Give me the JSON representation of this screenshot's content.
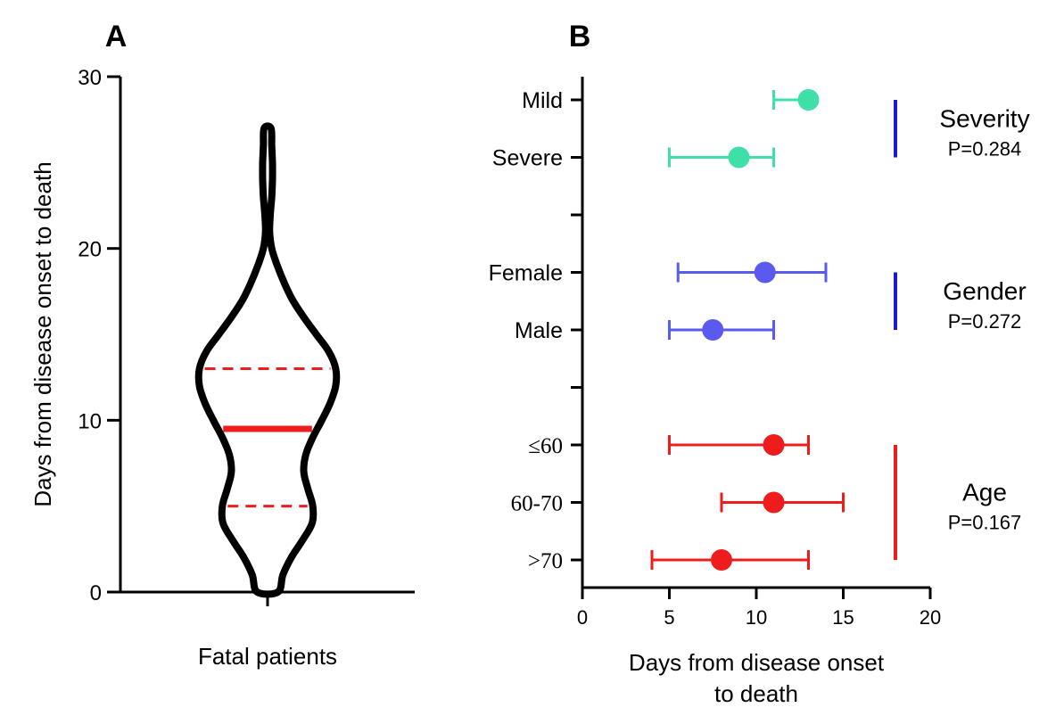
{
  "panels": {
    "a": {
      "letter": "A"
    },
    "b": {
      "letter": "B"
    }
  },
  "colors": {
    "axis": "#000000",
    "violin": "#000000",
    "median": "#ee1c1c",
    "quartile": "#ee1c1c",
    "severity": "#3ee0a8",
    "gender": "#5a5aee",
    "age": "#ee1c1c",
    "severity_bracket": "#1a1acc",
    "gender_bracket": "#1a1acc",
    "age_bracket": "#ee1c1c"
  },
  "chart_data": [
    {
      "panel": "A",
      "type": "violin",
      "title": "",
      "xlabel": "Fatal patients",
      "ylabel": "Days from disease onset to death",
      "ylim": [
        0,
        30
      ],
      "yticks": [
        0,
        10,
        20,
        30
      ],
      "ytick_labels": [
        "0",
        "10",
        "20",
        "30"
      ],
      "series": [
        {
          "category": "Fatal patients",
          "min": 0,
          "max": 27,
          "median": 9.5,
          "q1": 5,
          "q3": 13,
          "density_profile": [
            {
              "y": 0,
              "w": 0.15
            },
            {
              "y": 1,
              "w": 0.22
            },
            {
              "y": 2,
              "w": 0.34
            },
            {
              "y": 3,
              "w": 0.5
            },
            {
              "y": 4,
              "w": 0.64
            },
            {
              "y": 5,
              "w": 0.65
            },
            {
              "y": 6,
              "w": 0.58
            },
            {
              "y": 7,
              "w": 0.52
            },
            {
              "y": 8,
              "w": 0.55
            },
            {
              "y": 9,
              "w": 0.65
            },
            {
              "y": 10,
              "w": 0.78
            },
            {
              "y": 11,
              "w": 0.9
            },
            {
              "y": 12,
              "w": 0.98
            },
            {
              "y": 13,
              "w": 0.98
            },
            {
              "y": 14,
              "w": 0.88
            },
            {
              "y": 15,
              "w": 0.7
            },
            {
              "y": 16,
              "w": 0.52
            },
            {
              "y": 17,
              "w": 0.36
            },
            {
              "y": 18,
              "w": 0.24
            },
            {
              "y": 19,
              "w": 0.14
            },
            {
              "y": 20,
              "w": 0.06
            },
            {
              "y": 21,
              "w": 0.03
            },
            {
              "y": 22,
              "w": 0.04
            },
            {
              "y": 23,
              "w": 0.06
            },
            {
              "y": 24,
              "w": 0.07
            },
            {
              "y": 25,
              "w": 0.07
            },
            {
              "y": 26,
              "w": 0.06
            },
            {
              "y": 27,
              "w": 0.05
            }
          ]
        }
      ]
    },
    {
      "panel": "B",
      "type": "forest",
      "title": "",
      "xlabel_line1": "Days from disease onset",
      "xlabel_line2": "to death",
      "xlim": [
        0,
        20
      ],
      "xticks": [
        0,
        5,
        10,
        15,
        20
      ],
      "xtick_labels": [
        "0",
        "5",
        "10",
        "15",
        "20"
      ],
      "rows": [
        {
          "label": "Mild",
          "group": "severity",
          "value": 13,
          "low": 11,
          "high": 13
        },
        {
          "label": "Severe",
          "group": "severity",
          "value": 9,
          "low": 5,
          "high": 11
        },
        {
          "label": "",
          "group": "",
          "value": null,
          "low": null,
          "high": null
        },
        {
          "label": "Female",
          "group": "gender",
          "value": 10.5,
          "low": 5.5,
          "high": 14
        },
        {
          "label": "Male",
          "group": "gender",
          "value": 7.5,
          "low": 5,
          "high": 11
        },
        {
          "label": "",
          "group": "",
          "value": null,
          "low": null,
          "high": null
        },
        {
          "label": "≤60",
          "group": "age",
          "value": 11,
          "low": 5,
          "high": 13
        },
        {
          "label": "60-70",
          "group": "age",
          "value": 11,
          "low": 8,
          "high": 15
        },
        {
          "label": ">70",
          "group": "age",
          "value": 8,
          "low": 4,
          "high": 13
        }
      ],
      "groups": [
        {
          "key": "severity",
          "name": "Severity",
          "p": "P=0.284",
          "first_row": 0,
          "last_row": 1
        },
        {
          "key": "gender",
          "name": "Gender",
          "p": "P=0.272",
          "first_row": 3,
          "last_row": 4
        },
        {
          "key": "age",
          "name": "Age",
          "p": "P=0.167",
          "first_row": 6,
          "last_row": 8
        }
      ]
    }
  ]
}
